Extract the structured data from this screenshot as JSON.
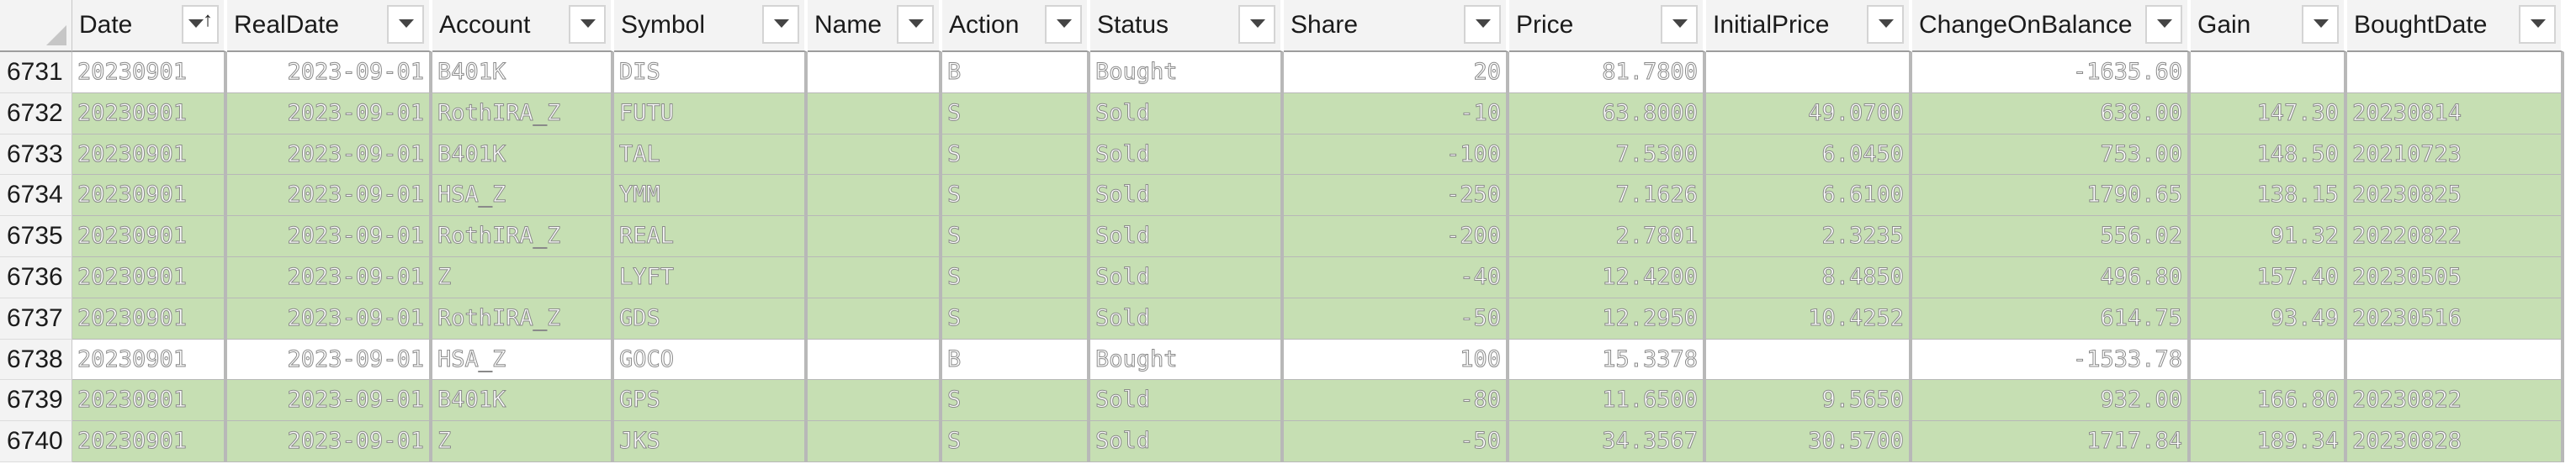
{
  "columns": [
    {
      "key": "date",
      "label": "Date",
      "sorted": true,
      "align": "l"
    },
    {
      "key": "realdate",
      "label": "RealDate",
      "sorted": false,
      "align": "r"
    },
    {
      "key": "account",
      "label": "Account",
      "sorted": false,
      "align": "l"
    },
    {
      "key": "symbol",
      "label": "Symbol",
      "sorted": false,
      "align": "l"
    },
    {
      "key": "name",
      "label": "Name",
      "sorted": false,
      "align": "l"
    },
    {
      "key": "action",
      "label": "Action",
      "sorted": false,
      "align": "l"
    },
    {
      "key": "status",
      "label": "Status",
      "sorted": false,
      "align": "l"
    },
    {
      "key": "share",
      "label": "Share",
      "sorted": false,
      "align": "r"
    },
    {
      "key": "price",
      "label": "Price",
      "sorted": false,
      "align": "r"
    },
    {
      "key": "initialprice",
      "label": "InitialPrice",
      "sorted": false,
      "align": "r"
    },
    {
      "key": "changeonbalance",
      "label": "ChangeOnBalance",
      "sorted": false,
      "align": "r"
    },
    {
      "key": "gain",
      "label": "Gain",
      "sorted": false,
      "align": "r"
    },
    {
      "key": "boughtdate",
      "label": "BoughtDate",
      "sorted": false,
      "align": "l"
    }
  ],
  "sort_indicator": "↑",
  "colors": {
    "sold_row": "#c6dfb3",
    "bought_row": "#ffffff",
    "header_bg": "#f3f3f3"
  },
  "rows": [
    {
      "num": "6731",
      "type": "bought",
      "cells": [
        "20230901",
        "2023-09-01",
        "B401K",
        "DIS",
        "",
        "B",
        "Bought",
        "20",
        "81.7800",
        "",
        "-1635.60",
        "",
        ""
      ]
    },
    {
      "num": "6732",
      "type": "sold",
      "cells": [
        "20230901",
        "2023-09-01",
        "RothIRA_Z",
        "FUTU",
        "",
        "S",
        "Sold",
        "-10",
        "63.8000",
        "49.0700",
        "638.00",
        "147.30",
        "20230814"
      ]
    },
    {
      "num": "6733",
      "type": "sold",
      "cells": [
        "20230901",
        "2023-09-01",
        "B401K",
        "TAL",
        "",
        "S",
        "Sold",
        "-100",
        "7.5300",
        "6.0450",
        "753.00",
        "148.50",
        "20210723"
      ]
    },
    {
      "num": "6734",
      "type": "sold",
      "cells": [
        "20230901",
        "2023-09-01",
        "HSA_Z",
        "YMM",
        "",
        "S",
        "Sold",
        "-250",
        "7.1626",
        "6.6100",
        "1790.65",
        "138.15",
        "20230825"
      ]
    },
    {
      "num": "6735",
      "type": "sold",
      "cells": [
        "20230901",
        "2023-09-01",
        "RothIRA_Z",
        "REAL",
        "",
        "S",
        "Sold",
        "-200",
        "2.7801",
        "2.3235",
        "556.02",
        "91.32",
        "20220822"
      ]
    },
    {
      "num": "6736",
      "type": "sold",
      "cells": [
        "20230901",
        "2023-09-01",
        "Z",
        "LYFT",
        "",
        "S",
        "Sold",
        "-40",
        "12.4200",
        "8.4850",
        "496.80",
        "157.40",
        "20230505"
      ]
    },
    {
      "num": "6737",
      "type": "sold",
      "cells": [
        "20230901",
        "2023-09-01",
        "RothIRA_Z",
        "GDS",
        "",
        "S",
        "Sold",
        "-50",
        "12.2950",
        "10.4252",
        "614.75",
        "93.49",
        "20230516"
      ]
    },
    {
      "num": "6738",
      "type": "bought",
      "cells": [
        "20230901",
        "2023-09-01",
        "HSA_Z",
        "GOCO",
        "",
        "B",
        "Bought",
        "100",
        "15.3378",
        "",
        "-1533.78",
        "",
        ""
      ]
    },
    {
      "num": "6739",
      "type": "sold",
      "cells": [
        "20230901",
        "2023-09-01",
        "B401K",
        "GPS",
        "",
        "S",
        "Sold",
        "-80",
        "11.6500",
        "9.5650",
        "932.00",
        "166.80",
        "20230822"
      ]
    },
    {
      "num": "6740",
      "type": "sold",
      "cells": [
        "20230901",
        "2023-09-01",
        "Z",
        "JKS",
        "",
        "S",
        "Sold",
        "-50",
        "34.3567",
        "30.5700",
        "1717.84",
        "189.34",
        "20230828"
      ]
    }
  ]
}
